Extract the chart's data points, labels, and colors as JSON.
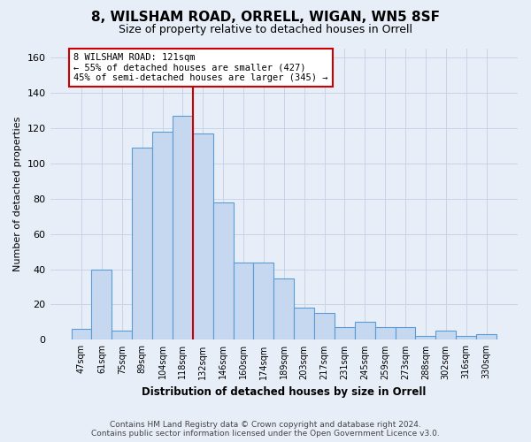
{
  "title": "8, WILSHAM ROAD, ORRELL, WIGAN, WN5 8SF",
  "subtitle": "Size of property relative to detached houses in Orrell",
  "xlabel": "Distribution of detached houses by size in Orrell",
  "ylabel": "Number of detached properties",
  "categories": [
    "47sqm",
    "61sqm",
    "75sqm",
    "89sqm",
    "104sqm",
    "118sqm",
    "132sqm",
    "146sqm",
    "160sqm",
    "174sqm",
    "189sqm",
    "203sqm",
    "217sqm",
    "231sqm",
    "245sqm",
    "259sqm",
    "273sqm",
    "288sqm",
    "302sqm",
    "316sqm",
    "330sqm"
  ],
  "values": [
    6,
    40,
    5,
    109,
    118,
    127,
    117,
    78,
    44,
    44,
    35,
    18,
    15,
    7,
    10,
    7,
    7,
    2,
    5,
    2,
    3
  ],
  "bar_color": "#c5d8f0",
  "bar_edge_color": "#5b9bd5",
  "highlight_color": "#cc0000",
  "vline_x": 6.0,
  "ylim": [
    0,
    165
  ],
  "yticks": [
    0,
    20,
    40,
    60,
    80,
    100,
    120,
    140,
    160
  ],
  "annotation_line1": "8 WILSHAM ROAD: 121sqm",
  "annotation_line2": "← 55% of detached houses are smaller (427)",
  "annotation_line3": "45% of semi-detached houses are larger (345) →",
  "footer_text": "Contains HM Land Registry data © Crown copyright and database right 2024.\nContains public sector information licensed under the Open Government Licence v3.0.",
  "background_color": "#e8eef8",
  "plot_background": "#e8eef8",
  "grid_color": "#c8d4e8"
}
